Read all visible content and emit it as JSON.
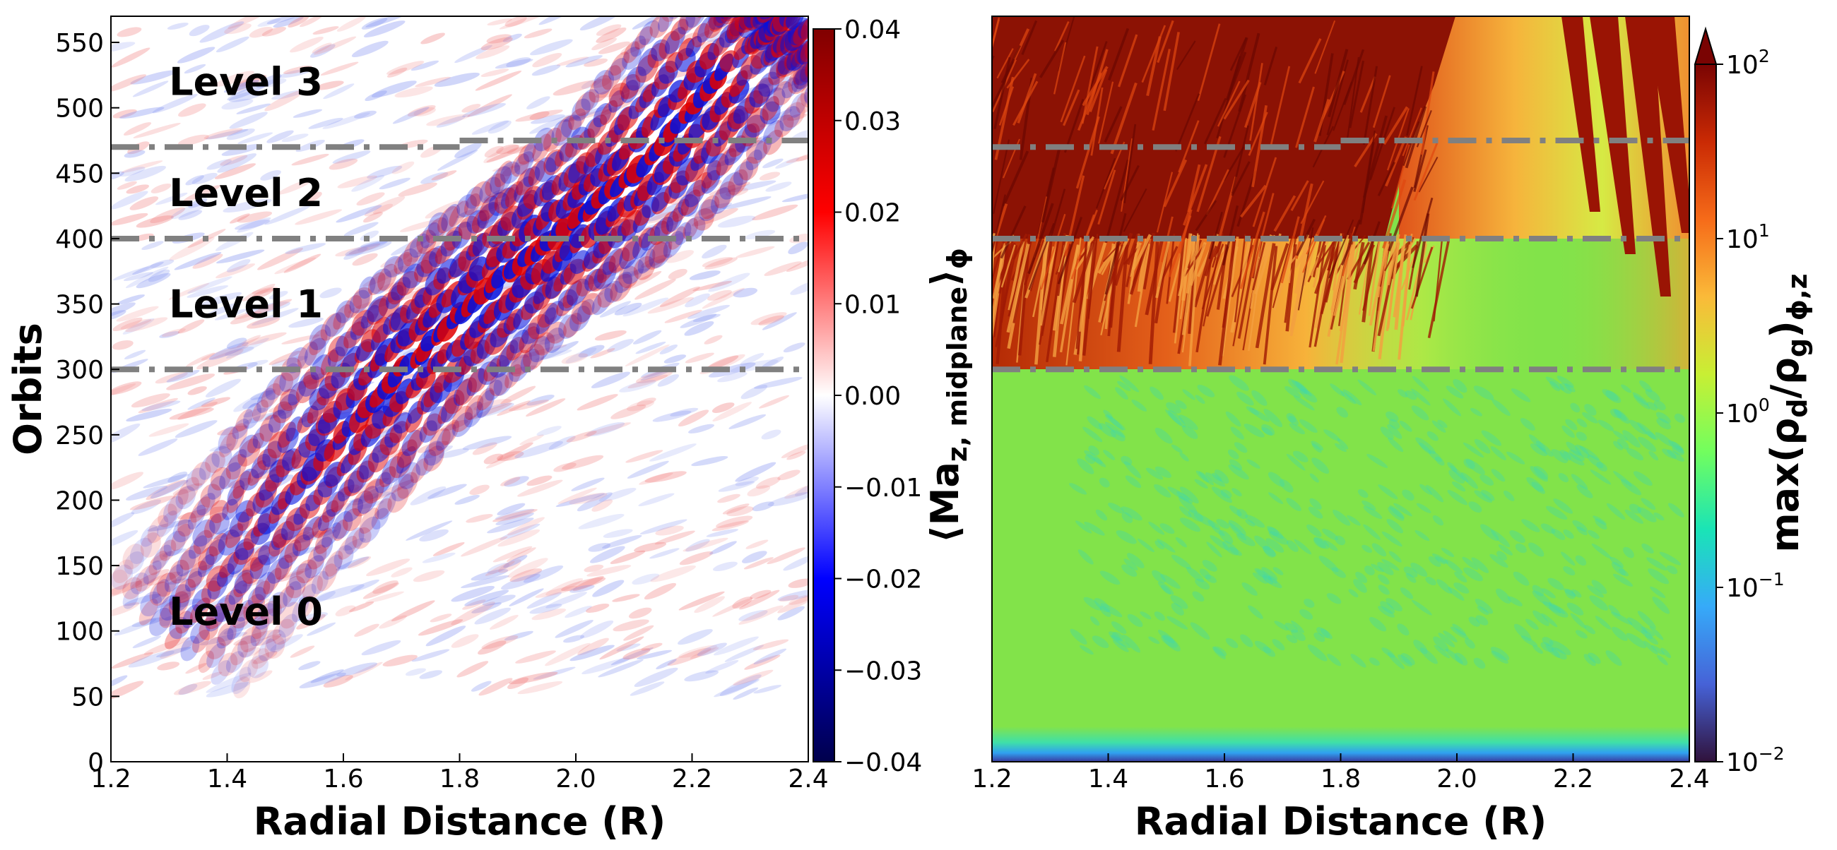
{
  "chart_data": [
    {
      "type": "heatmap",
      "xlabel": "Radial Distance (R)",
      "ylabel": "Orbits",
      "xlim": [
        1.2,
        2.4
      ],
      "xticks": [
        1.2,
        1.4,
        1.6,
        1.8,
        {
          "value": 2,
          "label": "2.0"
        },
        2.2,
        2.4
      ],
      "ylim": [
        0,
        570
      ],
      "yticks": [
        0,
        50,
        100,
        150,
        200,
        250,
        300,
        350,
        400,
        450,
        500,
        550
      ],
      "annotations": [
        {
          "text": "Level 3",
          "x": 1.3,
          "y": 520
        },
        {
          "text": "Level 2",
          "x": 1.3,
          "y": 435
        },
        {
          "text": "Level 1",
          "x": 1.3,
          "y": 350
        },
        {
          "text": "Level 0",
          "x": 1.3,
          "y": 115
        }
      ],
      "hlines": [
        {
          "y": 300,
          "x": [
            1.2,
            2.4
          ]
        },
        {
          "y": 400,
          "x": [
            1.2,
            2.4
          ]
        },
        {
          "y": 470,
          "x": [
            1.2,
            1.8
          ]
        },
        {
          "y": 475,
          "x": [
            1.8,
            2.4
          ]
        }
      ],
      "hline_color": "#808080",
      "colorbar": {
        "label": [
          {
            "text": "⟨Ma"
          },
          {
            "text": "z, midplane",
            "sub": true
          },
          {
            "text": "⟩"
          },
          {
            "text": "ϕ",
            "sub": true
          }
        ],
        "lim": [
          -0.04,
          0.04
        ],
        "ticks": [
          {
            "value": -0.04,
            "label": "−0.04"
          },
          {
            "value": -0.03,
            "label": "−0.03"
          },
          {
            "value": -0.02,
            "label": "−0.02"
          },
          {
            "value": -0.01,
            "label": "−0.01"
          },
          {
            "value": 0,
            "label": "0.00"
          },
          0.01,
          0.02,
          0.03,
          0.04
        ],
        "colors": [
          "#00004c",
          "#0000ff",
          "#ffffff",
          "#ff0000",
          "#800000"
        ]
      }
    },
    {
      "type": "heatmap",
      "xlabel": "Radial Distance (R)",
      "xlim": [
        1.2,
        2.4
      ],
      "xticks": [
        1.2,
        1.4,
        1.6,
        1.8,
        {
          "value": 2,
          "label": "2.0"
        },
        2.2,
        2.4
      ],
      "ylim": [
        0,
        570
      ],
      "hlines": [
        {
          "y": 300,
          "x": [
            1.2,
            2.4
          ]
        },
        {
          "y": 400,
          "x": [
            1.2,
            2.4
          ]
        },
        {
          "y": 470,
          "x": [
            1.2,
            1.8
          ]
        },
        {
          "y": 475,
          "x": [
            1.8,
            2.4
          ]
        }
      ],
      "hline_color": "#808080",
      "colorbar": {
        "label": [
          {
            "text": "max(ρ"
          },
          {
            "text": "d",
            "sub": true
          },
          {
            "text": "/ρ"
          },
          {
            "text": "g",
            "sub": true
          },
          {
            "text": ")"
          },
          {
            "text": "ϕ,z",
            "sub": true
          }
        ],
        "lim": [
          0.01,
          100
        ],
        "log": true,
        "extend": "max",
        "ticks": [
          {
            "value": 0.01,
            "label": "10",
            "exponent": "−2"
          },
          {
            "value": 0.1,
            "label": "10",
            "exponent": "−1"
          },
          {
            "value": 1,
            "label": "10",
            "exponent": "0"
          },
          {
            "value": 10,
            "label": "10",
            "exponent": "1"
          },
          {
            "value": 100,
            "label": "10",
            "exponent": "2"
          }
        ],
        "colors": [
          "#30123b",
          "#4662d7",
          "#36aaf9",
          "#1ae4b6",
          "#72fe5e",
          "#c8ef34",
          "#faba39",
          "#f66b19",
          "#ca2a04",
          "#7a0403"
        ]
      }
    }
  ]
}
